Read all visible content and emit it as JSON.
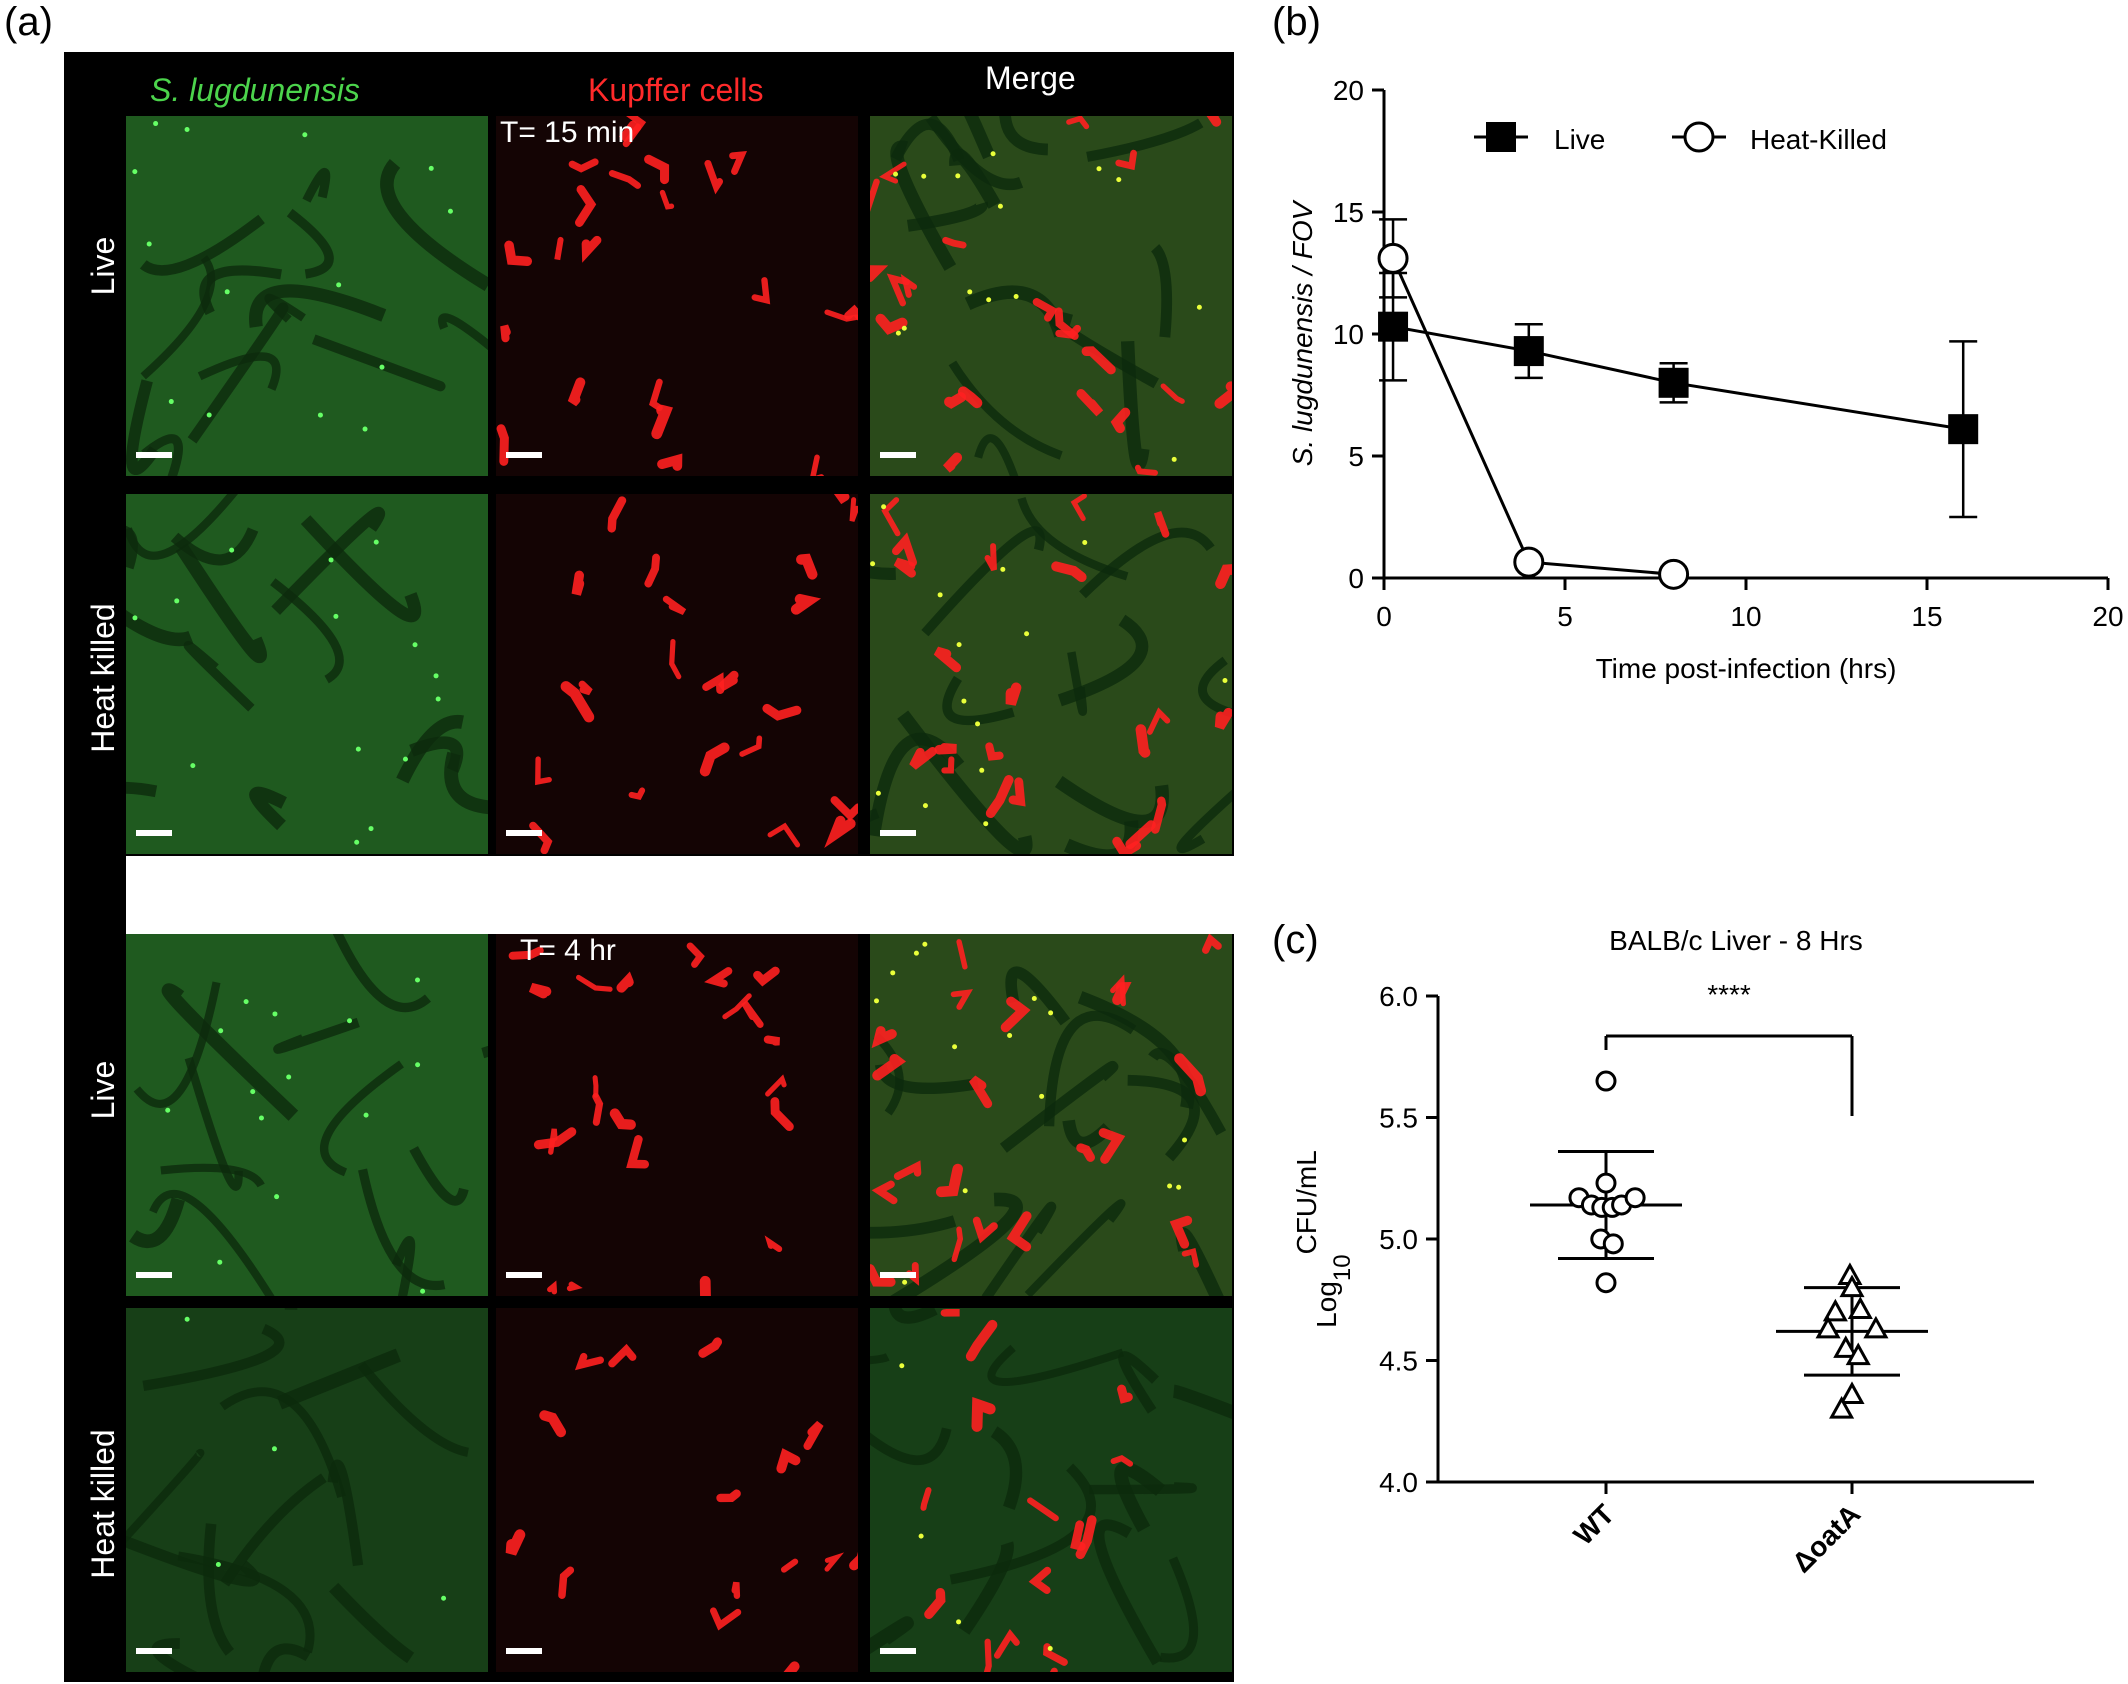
{
  "panels": {
    "a": "(a)",
    "b": "(b)",
    "c": "(c)"
  },
  "micrograph": {
    "col_headers": [
      "S. lugdunensis",
      "Kupffer cells",
      "Merge"
    ],
    "col_colors": [
      "#4cd44c",
      "#ff2a2a",
      "#ffffff"
    ],
    "time_labels": [
      "T= 15 min",
      "T= 4 hr"
    ],
    "row_labels": [
      "Live",
      "Heat killed",
      "Live",
      "Heat killed"
    ]
  },
  "chart_data": [
    {
      "type": "line",
      "title": "",
      "xlabel": "Time post-infection (hrs)",
      "ylabel": "S. lugdunensis / FOV",
      "xlim": [
        0,
        20
      ],
      "ylim": [
        0,
        20
      ],
      "xticks": [
        0,
        5,
        10,
        15,
        20
      ],
      "yticks": [
        0,
        5,
        10,
        15,
        20
      ],
      "legend_position": "top",
      "series": [
        {
          "name": "Live",
          "marker": "filled-square",
          "points": [
            {
              "x": 0.25,
              "y": 10.3,
              "err": 2.2
            },
            {
              "x": 4,
              "y": 9.3,
              "err": 1.1
            },
            {
              "x": 8,
              "y": 8.0,
              "err": 0.8
            },
            {
              "x": 16,
              "y": 6.1,
              "err": 3.6
            }
          ]
        },
        {
          "name": "Heat-Killed",
          "marker": "open-circle",
          "points": [
            {
              "x": 0.25,
              "y": 13.1,
              "err": 1.6
            },
            {
              "x": 4,
              "y": 0.65,
              "err": 0
            },
            {
              "x": 8,
              "y": 0.15,
              "err": 0
            }
          ]
        }
      ]
    },
    {
      "type": "scatter",
      "title": "BALB/c Liver - 8 Hrs",
      "ylabel_main": "Log",
      "ylabel_sub": "10",
      "ylabel_tail": "CFU/mL",
      "ylim": [
        4.0,
        6.0
      ],
      "yticks": [
        "4.0",
        "4.5",
        "5.0",
        "5.5",
        "6.0"
      ],
      "significance": "****",
      "groups": [
        {
          "name": "WT",
          "marker": "open-circle",
          "mean": 5.14,
          "sd_low": 4.92,
          "sd_high": 5.36,
          "points": [
            {
              "x": -0.26,
              "y": 5.17
            },
            {
              "x": -0.14,
              "y": 5.14
            },
            {
              "x": -0.04,
              "y": 5.13
            },
            {
              "x": 0.06,
              "y": 5.13
            },
            {
              "x": 0.15,
              "y": 5.14
            },
            {
              "x": 0.28,
              "y": 5.17
            },
            {
              "x": 0.0,
              "y": 5.23
            },
            {
              "x": -0.05,
              "y": 5.0
            },
            {
              "x": 0.07,
              "y": 4.98
            },
            {
              "x": 0.0,
              "y": 4.82
            },
            {
              "x": 0.0,
              "y": 5.65
            }
          ]
        },
        {
          "name": "ΔoatA",
          "marker": "open-triangle",
          "mean": 4.62,
          "sd_low": 4.44,
          "sd_high": 4.8,
          "points": [
            {
              "x": -0.02,
              "y": 4.85
            },
            {
              "x": 0.0,
              "y": 4.8
            },
            {
              "x": -0.16,
              "y": 4.7
            },
            {
              "x": 0.08,
              "y": 4.71
            },
            {
              "x": -0.23,
              "y": 4.63
            },
            {
              "x": 0.23,
              "y": 4.63
            },
            {
              "x": -0.06,
              "y": 4.55
            },
            {
              "x": 0.06,
              "y": 4.52
            },
            {
              "x": 0.0,
              "y": 4.36
            },
            {
              "x": -0.1,
              "y": 4.3
            }
          ]
        }
      ]
    }
  ]
}
